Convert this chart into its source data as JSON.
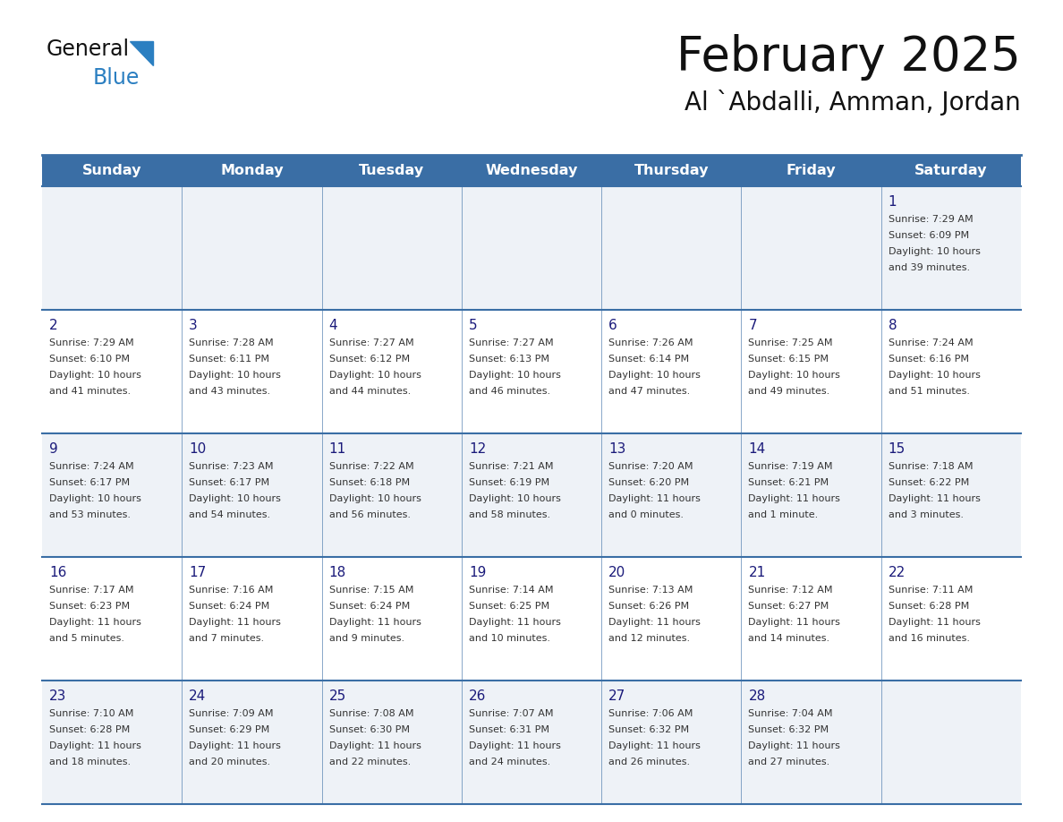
{
  "title": "February 2025",
  "subtitle": "Al `Abdalli, Amman, Jordan",
  "days_of_week": [
    "Sunday",
    "Monday",
    "Tuesday",
    "Wednesday",
    "Thursday",
    "Friday",
    "Saturday"
  ],
  "header_bg": "#3a6ea5",
  "header_text": "#ffffff",
  "odd_row_bg": "#eef2f7",
  "even_row_bg": "#ffffff",
  "grid_line_color": "#3a6ea5",
  "day_num_color": "#1a1a7a",
  "text_color": "#333333",
  "title_color": "#111111",
  "logo_color_general": "#111111",
  "logo_color_blue": "#2b7fc1",
  "logo_triangle_color": "#2b7fc1",
  "calendar_data": [
    [
      null,
      null,
      null,
      null,
      null,
      null,
      {
        "day": 1,
        "sunrise": "7:29 AM",
        "sunset": "6:09 PM",
        "daylight": "10 hours",
        "daylight2": "and 39 minutes."
      }
    ],
    [
      {
        "day": 2,
        "sunrise": "7:29 AM",
        "sunset": "6:10 PM",
        "daylight": "10 hours",
        "daylight2": "and 41 minutes."
      },
      {
        "day": 3,
        "sunrise": "7:28 AM",
        "sunset": "6:11 PM",
        "daylight": "10 hours",
        "daylight2": "and 43 minutes."
      },
      {
        "day": 4,
        "sunrise": "7:27 AM",
        "sunset": "6:12 PM",
        "daylight": "10 hours",
        "daylight2": "and 44 minutes."
      },
      {
        "day": 5,
        "sunrise": "7:27 AM",
        "sunset": "6:13 PM",
        "daylight": "10 hours",
        "daylight2": "and 46 minutes."
      },
      {
        "day": 6,
        "sunrise": "7:26 AM",
        "sunset": "6:14 PM",
        "daylight": "10 hours",
        "daylight2": "and 47 minutes."
      },
      {
        "day": 7,
        "sunrise": "7:25 AM",
        "sunset": "6:15 PM",
        "daylight": "10 hours",
        "daylight2": "and 49 minutes."
      },
      {
        "day": 8,
        "sunrise": "7:24 AM",
        "sunset": "6:16 PM",
        "daylight": "10 hours",
        "daylight2": "and 51 minutes."
      }
    ],
    [
      {
        "day": 9,
        "sunrise": "7:24 AM",
        "sunset": "6:17 PM",
        "daylight": "10 hours",
        "daylight2": "and 53 minutes."
      },
      {
        "day": 10,
        "sunrise": "7:23 AM",
        "sunset": "6:17 PM",
        "daylight": "10 hours",
        "daylight2": "and 54 minutes."
      },
      {
        "day": 11,
        "sunrise": "7:22 AM",
        "sunset": "6:18 PM",
        "daylight": "10 hours",
        "daylight2": "and 56 minutes."
      },
      {
        "day": 12,
        "sunrise": "7:21 AM",
        "sunset": "6:19 PM",
        "daylight": "10 hours",
        "daylight2": "and 58 minutes."
      },
      {
        "day": 13,
        "sunrise": "7:20 AM",
        "sunset": "6:20 PM",
        "daylight": "11 hours",
        "daylight2": "and 0 minutes."
      },
      {
        "day": 14,
        "sunrise": "7:19 AM",
        "sunset": "6:21 PM",
        "daylight": "11 hours",
        "daylight2": "and 1 minute."
      },
      {
        "day": 15,
        "sunrise": "7:18 AM",
        "sunset": "6:22 PM",
        "daylight": "11 hours",
        "daylight2": "and 3 minutes."
      }
    ],
    [
      {
        "day": 16,
        "sunrise": "7:17 AM",
        "sunset": "6:23 PM",
        "daylight": "11 hours",
        "daylight2": "and 5 minutes."
      },
      {
        "day": 17,
        "sunrise": "7:16 AM",
        "sunset": "6:24 PM",
        "daylight": "11 hours",
        "daylight2": "and 7 minutes."
      },
      {
        "day": 18,
        "sunrise": "7:15 AM",
        "sunset": "6:24 PM",
        "daylight": "11 hours",
        "daylight2": "and 9 minutes."
      },
      {
        "day": 19,
        "sunrise": "7:14 AM",
        "sunset": "6:25 PM",
        "daylight": "11 hours",
        "daylight2": "and 10 minutes."
      },
      {
        "day": 20,
        "sunrise": "7:13 AM",
        "sunset": "6:26 PM",
        "daylight": "11 hours",
        "daylight2": "and 12 minutes."
      },
      {
        "day": 21,
        "sunrise": "7:12 AM",
        "sunset": "6:27 PM",
        "daylight": "11 hours",
        "daylight2": "and 14 minutes."
      },
      {
        "day": 22,
        "sunrise": "7:11 AM",
        "sunset": "6:28 PM",
        "daylight": "11 hours",
        "daylight2": "and 16 minutes."
      }
    ],
    [
      {
        "day": 23,
        "sunrise": "7:10 AM",
        "sunset": "6:28 PM",
        "daylight": "11 hours",
        "daylight2": "and 18 minutes."
      },
      {
        "day": 24,
        "sunrise": "7:09 AM",
        "sunset": "6:29 PM",
        "daylight": "11 hours",
        "daylight2": "and 20 minutes."
      },
      {
        "day": 25,
        "sunrise": "7:08 AM",
        "sunset": "6:30 PM",
        "daylight": "11 hours",
        "daylight2": "and 22 minutes."
      },
      {
        "day": 26,
        "sunrise": "7:07 AM",
        "sunset": "6:31 PM",
        "daylight": "11 hours",
        "daylight2": "and 24 minutes."
      },
      {
        "day": 27,
        "sunrise": "7:06 AM",
        "sunset": "6:32 PM",
        "daylight": "11 hours",
        "daylight2": "and 26 minutes."
      },
      {
        "day": 28,
        "sunrise": "7:04 AM",
        "sunset": "6:32 PM",
        "daylight": "11 hours",
        "daylight2": "and 27 minutes."
      },
      null
    ]
  ]
}
